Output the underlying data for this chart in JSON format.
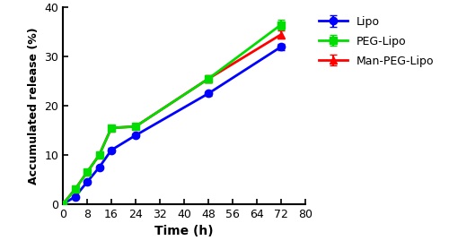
{
  "time": [
    0,
    4,
    8,
    12,
    16,
    24,
    48,
    72
  ],
  "lipo_mean": [
    0,
    1.5,
    4.5,
    7.5,
    11.0,
    14.0,
    22.5,
    32.0
  ],
  "lipo_err": [
    0,
    0.2,
    0.3,
    0.3,
    0.4,
    0.4,
    0.5,
    0.6
  ],
  "peg_mean": [
    0,
    3.0,
    6.5,
    10.0,
    15.5,
    15.8,
    25.5,
    36.5
  ],
  "peg_err": [
    0,
    0.3,
    0.4,
    0.4,
    0.5,
    0.5,
    0.7,
    1.0
  ],
  "man_mean": [
    0,
    3.0,
    6.5,
    10.0,
    15.5,
    15.8,
    25.5,
    34.5
  ],
  "man_err": [
    0,
    0.3,
    0.4,
    0.4,
    0.5,
    0.5,
    0.7,
    0.8
  ],
  "lipo_color": "#0000FF",
  "peg_color": "#00DD00",
  "man_color": "#FF0000",
  "xlabel": "Time (h)",
  "ylabel": "Accumulated release (%)",
  "xlim": [
    0,
    80
  ],
  "ylim": [
    0,
    40
  ],
  "xticks": [
    0,
    8,
    16,
    24,
    32,
    40,
    48,
    56,
    64,
    72,
    80
  ],
  "yticks": [
    0,
    10,
    20,
    30,
    40
  ],
  "legend_labels": [
    "Lipo",
    "PEG-Lipo",
    "Man-PEG-Lipo"
  ],
  "lipo_marker": "o",
  "peg_marker": "s",
  "man_marker": "^",
  "linewidth": 2.0,
  "markersize": 6,
  "capsize": 3,
  "elinewidth": 1.5
}
